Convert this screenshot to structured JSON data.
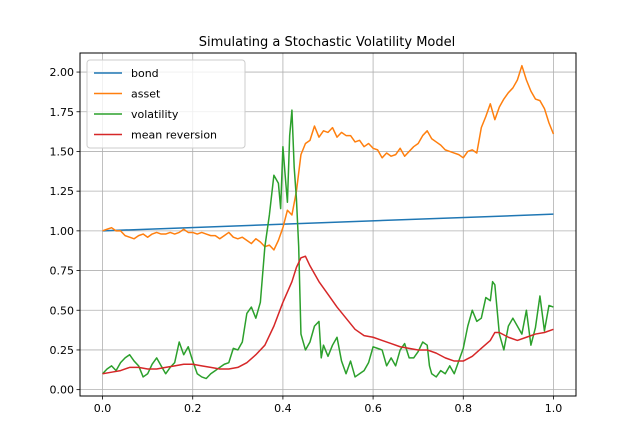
{
  "chart_data": {
    "type": "line",
    "title": "Simulating a Stochastic Volatility Model",
    "xlabel": "",
    "ylabel": "",
    "xlim": [
      -0.05,
      1.05
    ],
    "ylim": [
      -0.04,
      2.12
    ],
    "xticks": [
      0.0,
      0.2,
      0.4,
      0.6,
      0.8,
      1.0
    ],
    "xtick_labels": [
      "0.0",
      "0.2",
      "0.4",
      "0.6",
      "0.8",
      "1.0"
    ],
    "yticks": [
      0.0,
      0.25,
      0.5,
      0.75,
      1.0,
      1.25,
      1.5,
      1.75,
      2.0
    ],
    "ytick_labels": [
      "0.00",
      "0.25",
      "0.50",
      "0.75",
      "1.00",
      "1.25",
      "1.50",
      "1.75",
      "2.00"
    ],
    "grid": true,
    "legend_position": "top-left",
    "series": [
      {
        "name": "bond",
        "color": "#1f77b4",
        "points": [
          [
            0.0,
            1.0
          ],
          [
            1.0,
            1.105
          ]
        ]
      },
      {
        "name": "asset",
        "color": "#ff7f0e",
        "points": [
          [
            0.0,
            1.0
          ],
          [
            0.01,
            1.01
          ],
          [
            0.02,
            1.02
          ],
          [
            0.03,
            1.0
          ],
          [
            0.04,
            1.0
          ],
          [
            0.05,
            0.97
          ],
          [
            0.06,
            0.96
          ],
          [
            0.07,
            0.95
          ],
          [
            0.08,
            0.97
          ],
          [
            0.09,
            0.98
          ],
          [
            0.1,
            0.96
          ],
          [
            0.11,
            0.98
          ],
          [
            0.12,
            0.99
          ],
          [
            0.13,
            0.98
          ],
          [
            0.14,
            0.98
          ],
          [
            0.15,
            0.99
          ],
          [
            0.16,
            0.98
          ],
          [
            0.17,
            0.99
          ],
          [
            0.18,
            1.01
          ],
          [
            0.19,
            0.99
          ],
          [
            0.2,
            0.99
          ],
          [
            0.21,
            0.98
          ],
          [
            0.22,
            0.99
          ],
          [
            0.23,
            0.98
          ],
          [
            0.24,
            0.97
          ],
          [
            0.25,
            0.97
          ],
          [
            0.26,
            0.95
          ],
          [
            0.27,
            0.97
          ],
          [
            0.28,
            0.99
          ],
          [
            0.29,
            0.96
          ],
          [
            0.3,
            0.95
          ],
          [
            0.31,
            0.96
          ],
          [
            0.32,
            0.94
          ],
          [
            0.33,
            0.92
          ],
          [
            0.34,
            0.95
          ],
          [
            0.35,
            0.93
          ],
          [
            0.36,
            0.9
          ],
          [
            0.37,
            0.91
          ],
          [
            0.38,
            0.88
          ],
          [
            0.39,
            0.94
          ],
          [
            0.4,
            1.02
          ],
          [
            0.41,
            1.13
          ],
          [
            0.42,
            1.1
          ],
          [
            0.43,
            1.25
          ],
          [
            0.44,
            1.48
          ],
          [
            0.45,
            1.55
          ],
          [
            0.46,
            1.57
          ],
          [
            0.47,
            1.66
          ],
          [
            0.48,
            1.59
          ],
          [
            0.49,
            1.63
          ],
          [
            0.5,
            1.62
          ],
          [
            0.51,
            1.65
          ],
          [
            0.52,
            1.59
          ],
          [
            0.53,
            1.62
          ],
          [
            0.54,
            1.6
          ],
          [
            0.55,
            1.6
          ],
          [
            0.56,
            1.56
          ],
          [
            0.57,
            1.57
          ],
          [
            0.58,
            1.53
          ],
          [
            0.59,
            1.55
          ],
          [
            0.6,
            1.52
          ],
          [
            0.61,
            1.51
          ],
          [
            0.62,
            1.46
          ],
          [
            0.63,
            1.49
          ],
          [
            0.64,
            1.47
          ],
          [
            0.65,
            1.48
          ],
          [
            0.66,
            1.52
          ],
          [
            0.67,
            1.47
          ],
          [
            0.68,
            1.5
          ],
          [
            0.69,
            1.53
          ],
          [
            0.7,
            1.55
          ],
          [
            0.71,
            1.6
          ],
          [
            0.72,
            1.63
          ],
          [
            0.73,
            1.58
          ],
          [
            0.74,
            1.56
          ],
          [
            0.75,
            1.54
          ],
          [
            0.76,
            1.51
          ],
          [
            0.77,
            1.5
          ],
          [
            0.78,
            1.49
          ],
          [
            0.79,
            1.48
          ],
          [
            0.8,
            1.46
          ],
          [
            0.81,
            1.5
          ],
          [
            0.82,
            1.51
          ],
          [
            0.83,
            1.49
          ],
          [
            0.84,
            1.65
          ],
          [
            0.85,
            1.72
          ],
          [
            0.86,
            1.8
          ],
          [
            0.87,
            1.7
          ],
          [
            0.88,
            1.78
          ],
          [
            0.89,
            1.83
          ],
          [
            0.9,
            1.87
          ],
          [
            0.91,
            1.9
          ],
          [
            0.92,
            1.95
          ],
          [
            0.93,
            2.04
          ],
          [
            0.94,
            1.95
          ],
          [
            0.95,
            1.88
          ],
          [
            0.96,
            1.83
          ],
          [
            0.97,
            1.82
          ],
          [
            0.98,
            1.77
          ],
          [
            0.99,
            1.68
          ],
          [
            1.0,
            1.61
          ]
        ]
      },
      {
        "name": "volatility",
        "color": "#2ca02c",
        "points": [
          [
            0.0,
            0.1
          ],
          [
            0.01,
            0.13
          ],
          [
            0.02,
            0.15
          ],
          [
            0.03,
            0.12
          ],
          [
            0.04,
            0.17
          ],
          [
            0.05,
            0.2
          ],
          [
            0.06,
            0.22
          ],
          [
            0.07,
            0.18
          ],
          [
            0.08,
            0.15
          ],
          [
            0.09,
            0.08
          ],
          [
            0.1,
            0.1
          ],
          [
            0.11,
            0.16
          ],
          [
            0.12,
            0.2
          ],
          [
            0.13,
            0.15
          ],
          [
            0.14,
            0.1
          ],
          [
            0.15,
            0.14
          ],
          [
            0.16,
            0.17
          ],
          [
            0.17,
            0.3
          ],
          [
            0.18,
            0.22
          ],
          [
            0.19,
            0.27
          ],
          [
            0.2,
            0.18
          ],
          [
            0.21,
            0.1
          ],
          [
            0.22,
            0.08
          ],
          [
            0.23,
            0.07
          ],
          [
            0.24,
            0.1
          ],
          [
            0.25,
            0.12
          ],
          [
            0.26,
            0.14
          ],
          [
            0.27,
            0.16
          ],
          [
            0.28,
            0.17
          ],
          [
            0.29,
            0.26
          ],
          [
            0.3,
            0.25
          ],
          [
            0.31,
            0.3
          ],
          [
            0.32,
            0.48
          ],
          [
            0.33,
            0.52
          ],
          [
            0.34,
            0.45
          ],
          [
            0.35,
            0.55
          ],
          [
            0.36,
            0.9
          ],
          [
            0.37,
            1.1
          ],
          [
            0.38,
            1.35
          ],
          [
            0.39,
            1.3
          ],
          [
            0.395,
            1.14
          ],
          [
            0.4,
            1.53
          ],
          [
            0.405,
            1.35
          ],
          [
            0.41,
            1.18
          ],
          [
            0.415,
            1.6
          ],
          [
            0.42,
            1.76
          ],
          [
            0.425,
            1.4
          ],
          [
            0.43,
            1.2
          ],
          [
            0.435,
            0.9
          ],
          [
            0.44,
            0.35
          ],
          [
            0.45,
            0.25
          ],
          [
            0.46,
            0.3
          ],
          [
            0.47,
            0.4
          ],
          [
            0.48,
            0.43
          ],
          [
            0.485,
            0.2
          ],
          [
            0.49,
            0.28
          ],
          [
            0.5,
            0.21
          ],
          [
            0.51,
            0.28
          ],
          [
            0.52,
            0.33
          ],
          [
            0.53,
            0.18
          ],
          [
            0.54,
            0.1
          ],
          [
            0.55,
            0.18
          ],
          [
            0.56,
            0.08
          ],
          [
            0.57,
            0.1
          ],
          [
            0.58,
            0.12
          ],
          [
            0.59,
            0.17
          ],
          [
            0.6,
            0.27
          ],
          [
            0.61,
            0.26
          ],
          [
            0.62,
            0.25
          ],
          [
            0.63,
            0.15
          ],
          [
            0.64,
            0.2
          ],
          [
            0.65,
            0.15
          ],
          [
            0.66,
            0.25
          ],
          [
            0.67,
            0.29
          ],
          [
            0.68,
            0.2
          ],
          [
            0.69,
            0.2
          ],
          [
            0.7,
            0.24
          ],
          [
            0.71,
            0.3
          ],
          [
            0.72,
            0.28
          ],
          [
            0.725,
            0.15
          ],
          [
            0.73,
            0.1
          ],
          [
            0.74,
            0.08
          ],
          [
            0.75,
            0.12
          ],
          [
            0.76,
            0.1
          ],
          [
            0.77,
            0.15
          ],
          [
            0.78,
            0.1
          ],
          [
            0.79,
            0.18
          ],
          [
            0.8,
            0.26
          ],
          [
            0.81,
            0.4
          ],
          [
            0.82,
            0.5
          ],
          [
            0.83,
            0.43
          ],
          [
            0.84,
            0.45
          ],
          [
            0.85,
            0.58
          ],
          [
            0.86,
            0.56
          ],
          [
            0.865,
            0.68
          ],
          [
            0.87,
            0.66
          ],
          [
            0.88,
            0.35
          ],
          [
            0.89,
            0.25
          ],
          [
            0.9,
            0.4
          ],
          [
            0.91,
            0.45
          ],
          [
            0.92,
            0.4
          ],
          [
            0.93,
            0.35
          ],
          [
            0.94,
            0.5
          ],
          [
            0.95,
            0.28
          ],
          [
            0.96,
            0.39
          ],
          [
            0.97,
            0.59
          ],
          [
            0.98,
            0.37
          ],
          [
            0.99,
            0.53
          ],
          [
            1.0,
            0.52
          ]
        ]
      },
      {
        "name": "mean reversion",
        "color": "#d62728",
        "points": [
          [
            0.0,
            0.1
          ],
          [
            0.02,
            0.11
          ],
          [
            0.04,
            0.12
          ],
          [
            0.06,
            0.14
          ],
          [
            0.08,
            0.14
          ],
          [
            0.1,
            0.13
          ],
          [
            0.12,
            0.13
          ],
          [
            0.14,
            0.14
          ],
          [
            0.16,
            0.15
          ],
          [
            0.18,
            0.16
          ],
          [
            0.2,
            0.16
          ],
          [
            0.22,
            0.15
          ],
          [
            0.24,
            0.14
          ],
          [
            0.26,
            0.13
          ],
          [
            0.28,
            0.13
          ],
          [
            0.3,
            0.14
          ],
          [
            0.32,
            0.17
          ],
          [
            0.34,
            0.22
          ],
          [
            0.36,
            0.28
          ],
          [
            0.38,
            0.4
          ],
          [
            0.4,
            0.55
          ],
          [
            0.42,
            0.68
          ],
          [
            0.43,
            0.77
          ],
          [
            0.44,
            0.83
          ],
          [
            0.45,
            0.84
          ],
          [
            0.46,
            0.78
          ],
          [
            0.48,
            0.68
          ],
          [
            0.5,
            0.6
          ],
          [
            0.52,
            0.52
          ],
          [
            0.54,
            0.45
          ],
          [
            0.56,
            0.38
          ],
          [
            0.58,
            0.34
          ],
          [
            0.6,
            0.33
          ],
          [
            0.62,
            0.31
          ],
          [
            0.64,
            0.29
          ],
          [
            0.66,
            0.27
          ],
          [
            0.68,
            0.26
          ],
          [
            0.7,
            0.25
          ],
          [
            0.72,
            0.25
          ],
          [
            0.74,
            0.23
          ],
          [
            0.76,
            0.2
          ],
          [
            0.78,
            0.18
          ],
          [
            0.8,
            0.18
          ],
          [
            0.82,
            0.21
          ],
          [
            0.84,
            0.26
          ],
          [
            0.86,
            0.31
          ],
          [
            0.87,
            0.36
          ],
          [
            0.88,
            0.36
          ],
          [
            0.9,
            0.33
          ],
          [
            0.92,
            0.31
          ],
          [
            0.94,
            0.33
          ],
          [
            0.96,
            0.35
          ],
          [
            0.98,
            0.36
          ],
          [
            1.0,
            0.38
          ]
        ]
      }
    ]
  }
}
